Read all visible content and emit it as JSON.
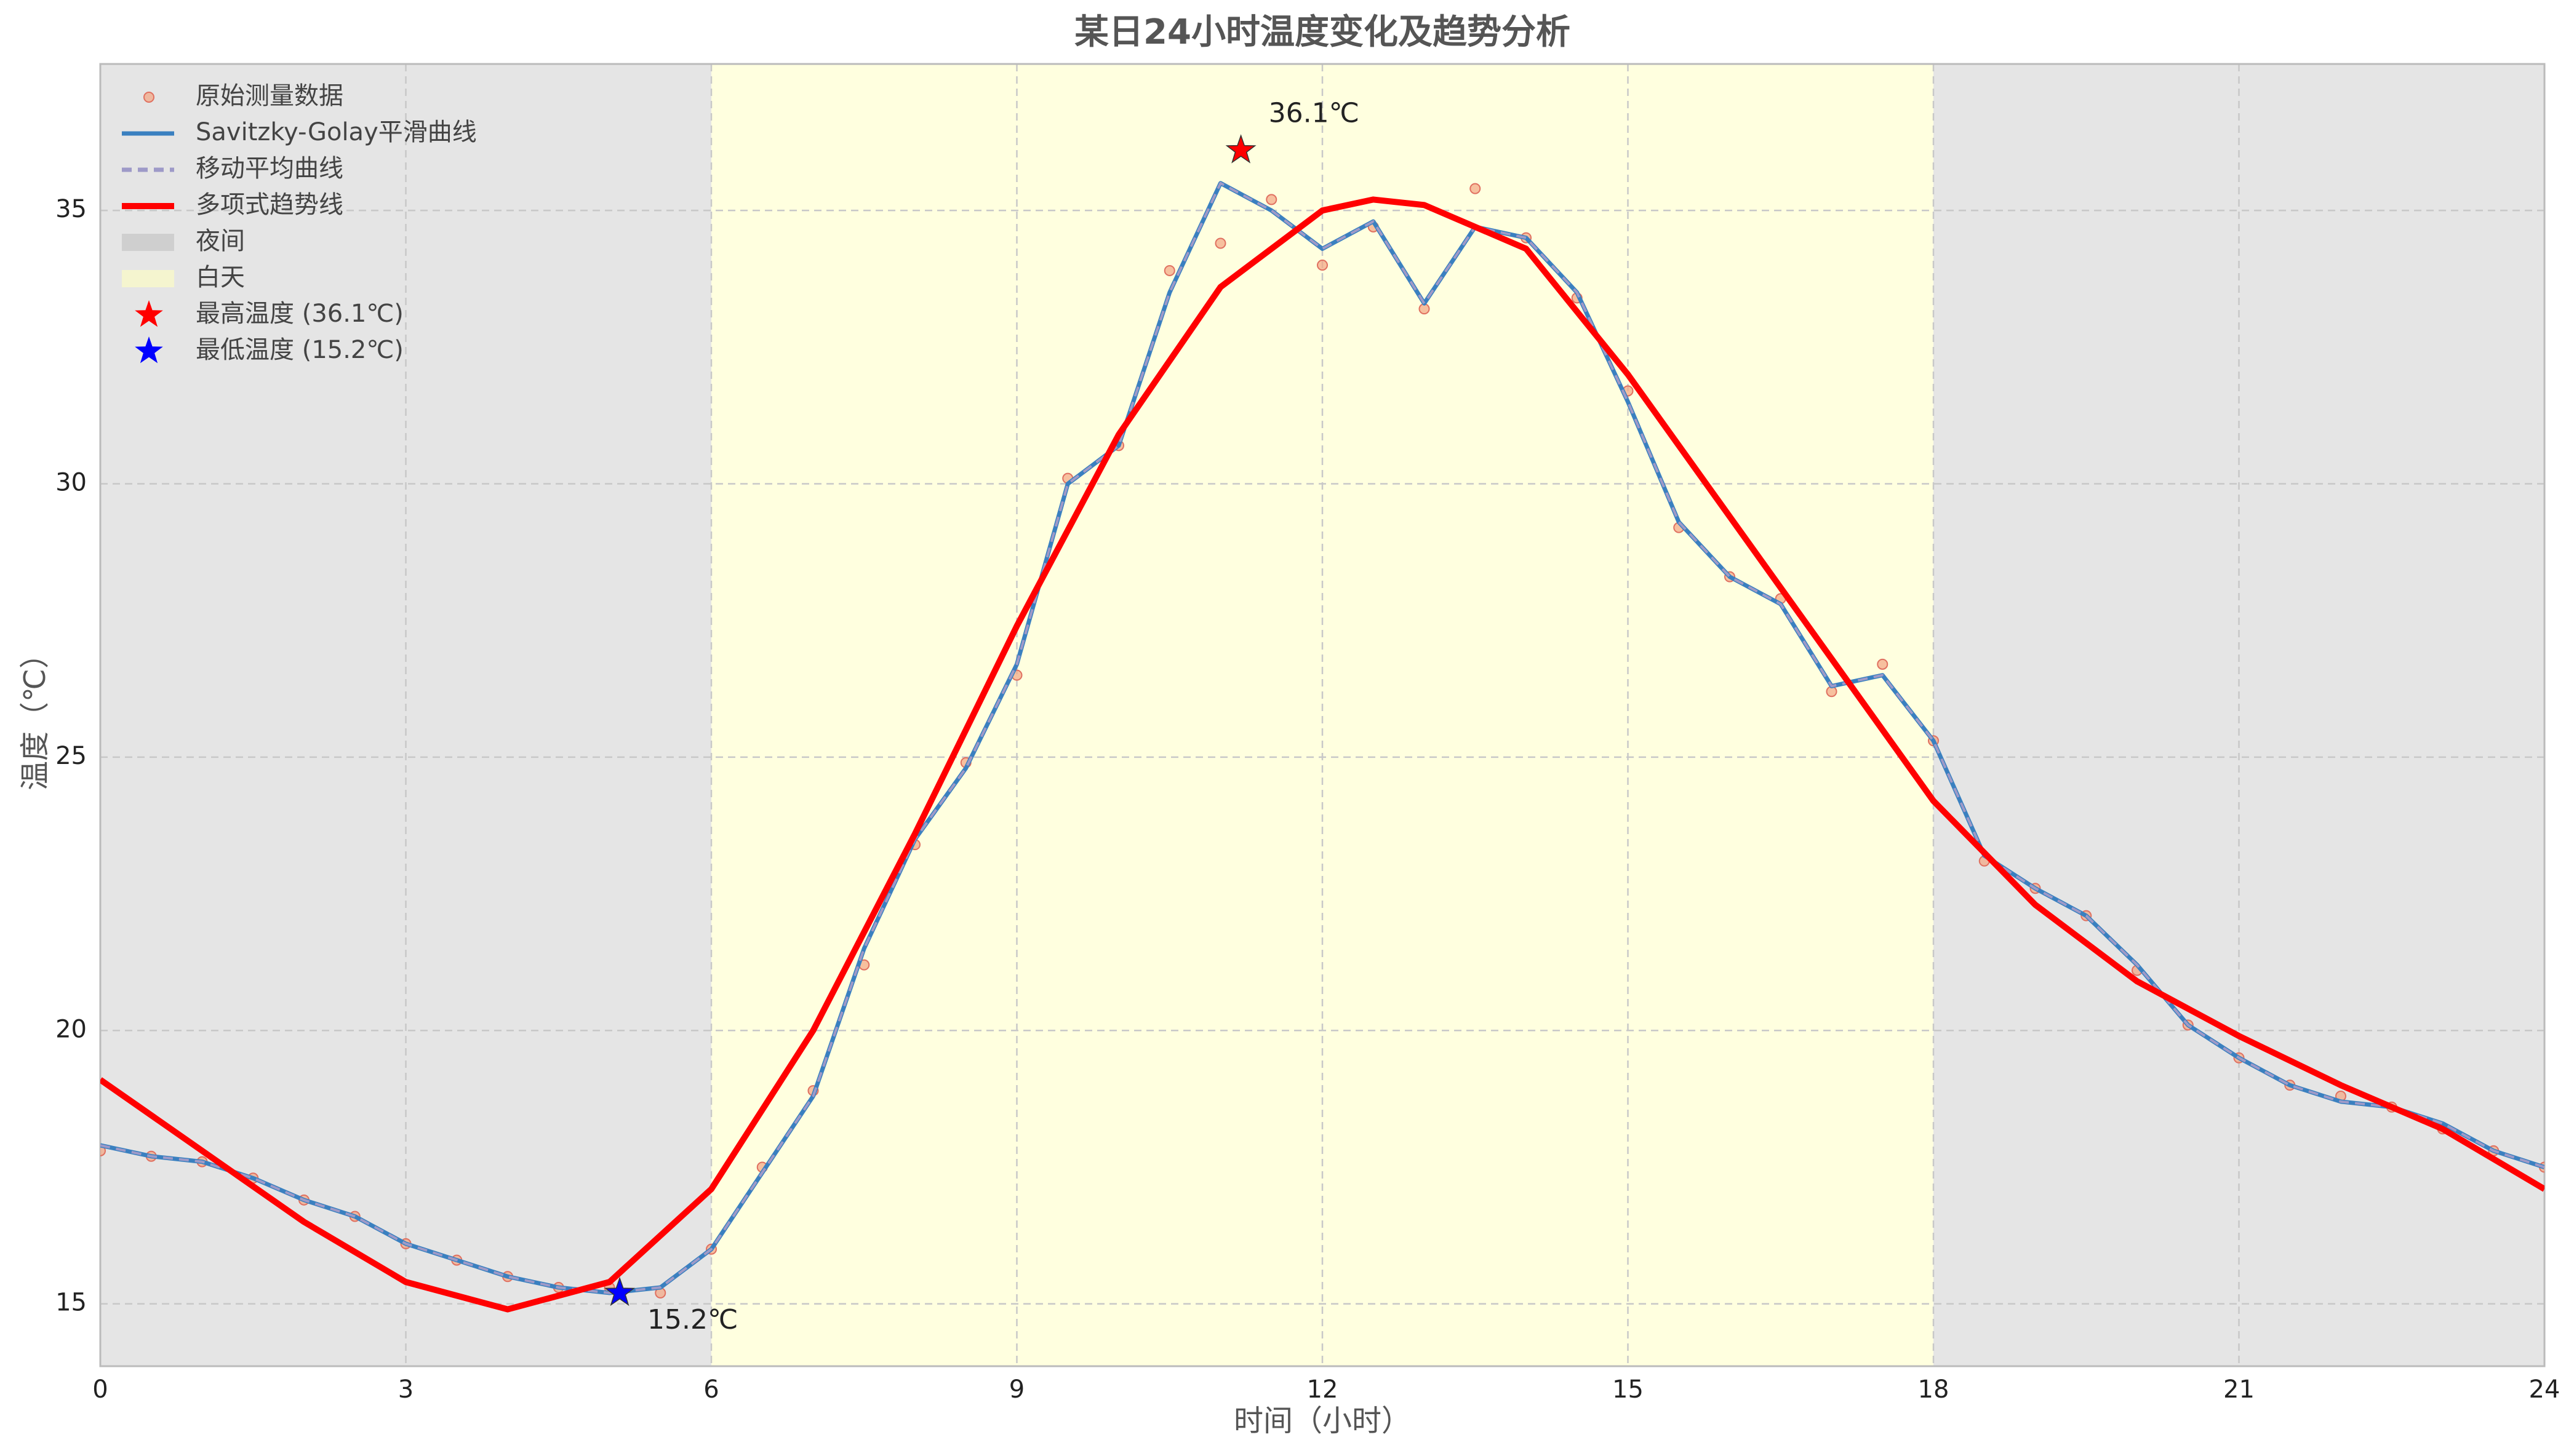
{
  "chart_data": {
    "type": "line",
    "title": "某日24小时温度变化及趋势分析",
    "xlabel": "时间（小时）",
    "ylabel": "温度（℃）",
    "xlim": [
      0,
      24
    ],
    "xticks": [
      0,
      3,
      6,
      9,
      12,
      15,
      18,
      21,
      24
    ],
    "ylim": [
      13.86,
      37.68
    ],
    "yticks": [
      15,
      20,
      25,
      30,
      35
    ],
    "grid": true,
    "legend": "upper left",
    "spans": [
      {
        "name": "夜间",
        "color": "#bfbfbf",
        "ranges": [
          [
            0,
            6
          ],
          [
            18,
            24
          ]
        ]
      },
      {
        "name": "白天",
        "color": "#ffffc0",
        "ranges": [
          [
            6,
            18
          ]
        ]
      }
    ],
    "x": [
      0,
      0.5,
      1,
      1.5,
      2,
      2.5,
      3,
      3.5,
      4,
      4.5,
      5,
      5.5,
      6,
      6.5,
      7,
      7.5,
      8,
      8.5,
      9,
      9.5,
      10,
      10.5,
      11,
      11.5,
      12,
      12.5,
      13,
      13.5,
      14,
      14.5,
      15,
      15.5,
      16,
      16.5,
      17,
      17.5,
      18,
      18.5,
      19,
      19.5,
      20,
      20.5,
      21,
      21.5,
      22,
      22.5,
      23,
      23.5,
      24
    ],
    "series": [
      {
        "name": "原始测量数据",
        "style": "scatter",
        "color": "#f4a582",
        "values": [
          17.8,
          17.7,
          17.6,
          17.3,
          16.9,
          16.6,
          16.1,
          15.8,
          15.5,
          15.3,
          15.3,
          15.2,
          16.0,
          17.5,
          18.9,
          21.2,
          23.4,
          24.9,
          26.5,
          30.1,
          30.7,
          33.9,
          34.4,
          35.2,
          34.0,
          34.7,
          33.2,
          35.4,
          34.5,
          33.4,
          31.7,
          29.2,
          28.3,
          27.9,
          26.2,
          26.7,
          25.3,
          23.1,
          22.6,
          22.1,
          21.1,
          20.1,
          19.5,
          19.0,
          18.8,
          18.6,
          18.2,
          17.8,
          17.5
        ]
      },
      {
        "name": "Savitzky-Golay平滑曲线",
        "style": "line",
        "color": "#3a80c0",
        "values": [
          17.9,
          17.7,
          17.6,
          17.3,
          16.9,
          16.6,
          16.1,
          15.8,
          15.5,
          15.3,
          15.2,
          15.3,
          16.0,
          17.4,
          18.8,
          21.5,
          23.5,
          24.8,
          26.7,
          30.0,
          30.7,
          33.5,
          35.5,
          35.0,
          34.3,
          34.8,
          33.3,
          34.7,
          34.5,
          33.5,
          31.5,
          29.3,
          28.3,
          27.8,
          26.3,
          26.5,
          25.3,
          23.2,
          22.6,
          22.1,
          21.2,
          20.1,
          19.5,
          19.0,
          18.7,
          18.6,
          18.3,
          17.8,
          17.5
        ]
      },
      {
        "name": "移动平均曲线",
        "style": "dashed",
        "color": "#9e9ac8",
        "values": [
          17.9,
          17.7,
          17.6,
          17.3,
          16.9,
          16.6,
          16.1,
          15.8,
          15.5,
          15.3,
          15.2,
          15.3,
          16.0,
          17.4,
          18.8,
          21.5,
          23.5,
          24.8,
          26.7,
          30.0,
          30.7,
          33.5,
          35.5,
          35.0,
          34.3,
          34.8,
          33.3,
          34.7,
          34.5,
          33.5,
          31.5,
          29.3,
          28.3,
          27.8,
          26.3,
          26.5,
          25.3,
          23.2,
          22.6,
          22.1,
          21.2,
          20.1,
          19.5,
          19.0,
          18.7,
          18.6,
          18.3,
          17.8,
          17.5
        ]
      },
      {
        "name": "多项式趋势线",
        "style": "thick",
        "color": "#ff0000",
        "x": [
          0,
          1,
          2,
          3,
          4,
          5,
          6,
          7,
          8,
          9,
          10,
          11,
          12,
          12.5,
          13,
          14,
          15,
          16,
          17,
          18,
          19,
          20,
          21,
          22,
          23,
          24
        ],
        "values": [
          19.1,
          17.8,
          16.5,
          15.4,
          14.9,
          15.4,
          17.1,
          20.0,
          23.6,
          27.4,
          30.9,
          33.6,
          35.0,
          35.2,
          35.1,
          34.3,
          32.0,
          29.4,
          26.8,
          24.2,
          22.3,
          20.9,
          19.9,
          19.0,
          18.2,
          17.1
        ]
      }
    ],
    "markers": [
      {
        "name": "最高温度 (36.1℃)",
        "x": 11.2,
        "y": 36.1,
        "color": "#ff0000",
        "label": "36.1℃"
      },
      {
        "name": "最低温度 (15.2℃)",
        "x": 5.1,
        "y": 15.2,
        "color": "#0000ff",
        "label": "15.2℃"
      }
    ]
  }
}
